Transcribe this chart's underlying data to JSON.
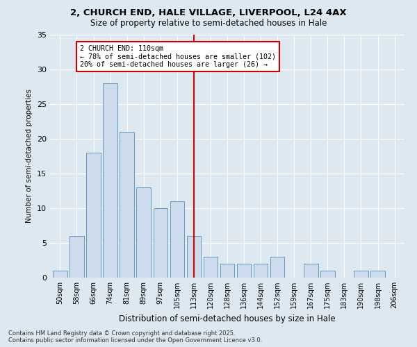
{
  "title_line1": "2, CHURCH END, HALE VILLAGE, LIVERPOOL, L24 4AX",
  "title_line2": "Size of property relative to semi-detached houses in Hale",
  "xlabel": "Distribution of semi-detached houses by size in Hale",
  "ylabel": "Number of semi-detached properties",
  "categories": [
    "50sqm",
    "58sqm",
    "66sqm",
    "74sqm",
    "81sqm",
    "89sqm",
    "97sqm",
    "105sqm",
    "113sqm",
    "120sqm",
    "128sqm",
    "136sqm",
    "144sqm",
    "152sqm",
    "159sqm",
    "167sqm",
    "175sqm",
    "183sqm",
    "190sqm",
    "198sqm",
    "206sqm"
  ],
  "values": [
    1,
    6,
    18,
    28,
    21,
    13,
    10,
    11,
    6,
    3,
    2,
    2,
    2,
    3,
    0,
    2,
    1,
    0,
    1,
    1,
    0
  ],
  "bar_color": "#ccdcec",
  "bar_edge_color": "#6699bb",
  "vline_index": 8,
  "vline_color": "#cc0000",
  "annotation_title": "2 CHURCH END: 110sqm",
  "annotation_line1": "← 78% of semi-detached houses are smaller (102)",
  "annotation_line2": "20% of semi-detached houses are larger (26) →",
  "annotation_box_color": "#cc0000",
  "ylim": [
    0,
    35
  ],
  "yticks": [
    0,
    5,
    10,
    15,
    20,
    25,
    30,
    35
  ],
  "footer_line1": "Contains HM Land Registry data © Crown copyright and database right 2025.",
  "footer_line2": "Contains public sector information licensed under the Open Government Licence v3.0.",
  "bg_color": "#dde8f0",
  "plot_bg_color": "#dde8f0"
}
